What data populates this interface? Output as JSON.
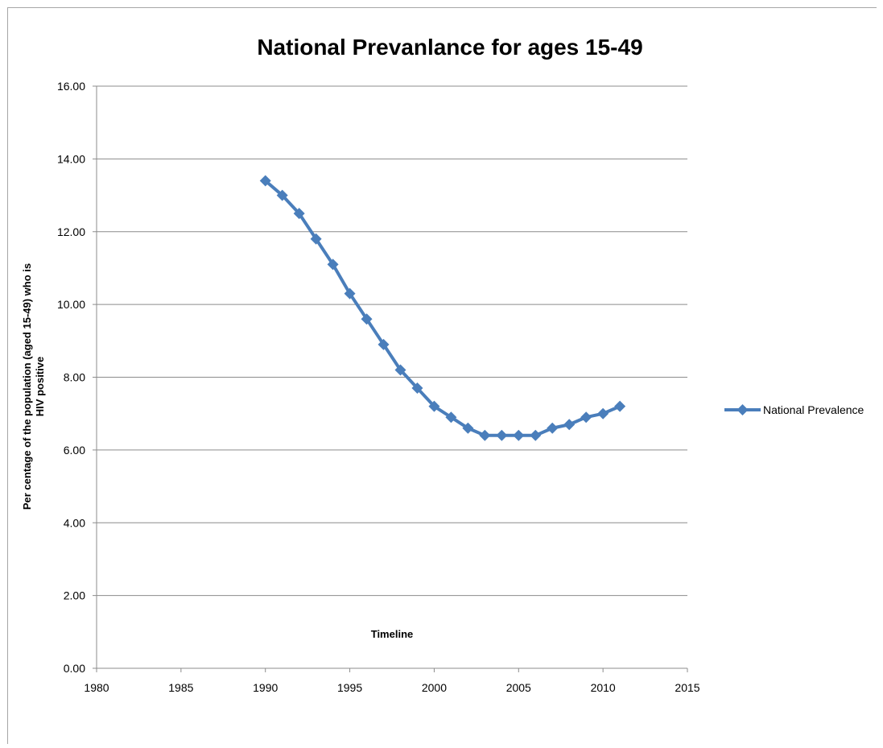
{
  "chart_data": {
    "type": "scatter",
    "title": "National Prevanlance for ages 15-49",
    "xlabel": "Timeline",
    "ylabel_lines": [
      "Per centage of the population (aged 15-49) who is",
      "HIV positive"
    ],
    "xlim": [
      1980,
      2015
    ],
    "ylim": [
      0,
      16
    ],
    "x_ticks": [
      1980,
      1985,
      1990,
      1995,
      2000,
      2005,
      2010,
      2015
    ],
    "x_tick_labels": [
      "1980",
      "1985",
      "1990",
      "1995",
      "2000",
      "2005",
      "2010",
      "2015"
    ],
    "y_ticks": [
      0,
      2,
      4,
      6,
      8,
      10,
      12,
      14,
      16
    ],
    "y_tick_labels": [
      "0.00",
      "2.00",
      "4.00",
      "6.00",
      "8.00",
      "10.00",
      "12.00",
      "14.00",
      "16.00"
    ],
    "grid": "horizontal",
    "legend_position": "right",
    "series": [
      {
        "name": "National Prevalence",
        "color": "#4a7ebb",
        "marker": "diamond",
        "x": [
          1990,
          1991,
          1992,
          1993,
          1994,
          1995,
          1996,
          1997,
          1998,
          1999,
          2000,
          2001,
          2002,
          2003,
          2004,
          2005,
          2006,
          2007,
          2008,
          2009,
          2010,
          2011
        ],
        "y": [
          13.4,
          13.0,
          12.5,
          11.8,
          11.1,
          10.3,
          9.6,
          8.9,
          8.2,
          7.7,
          7.2,
          6.9,
          6.6,
          6.4,
          6.4,
          6.4,
          6.4,
          6.6,
          6.7,
          6.9,
          7.0,
          7.2
        ]
      }
    ]
  }
}
